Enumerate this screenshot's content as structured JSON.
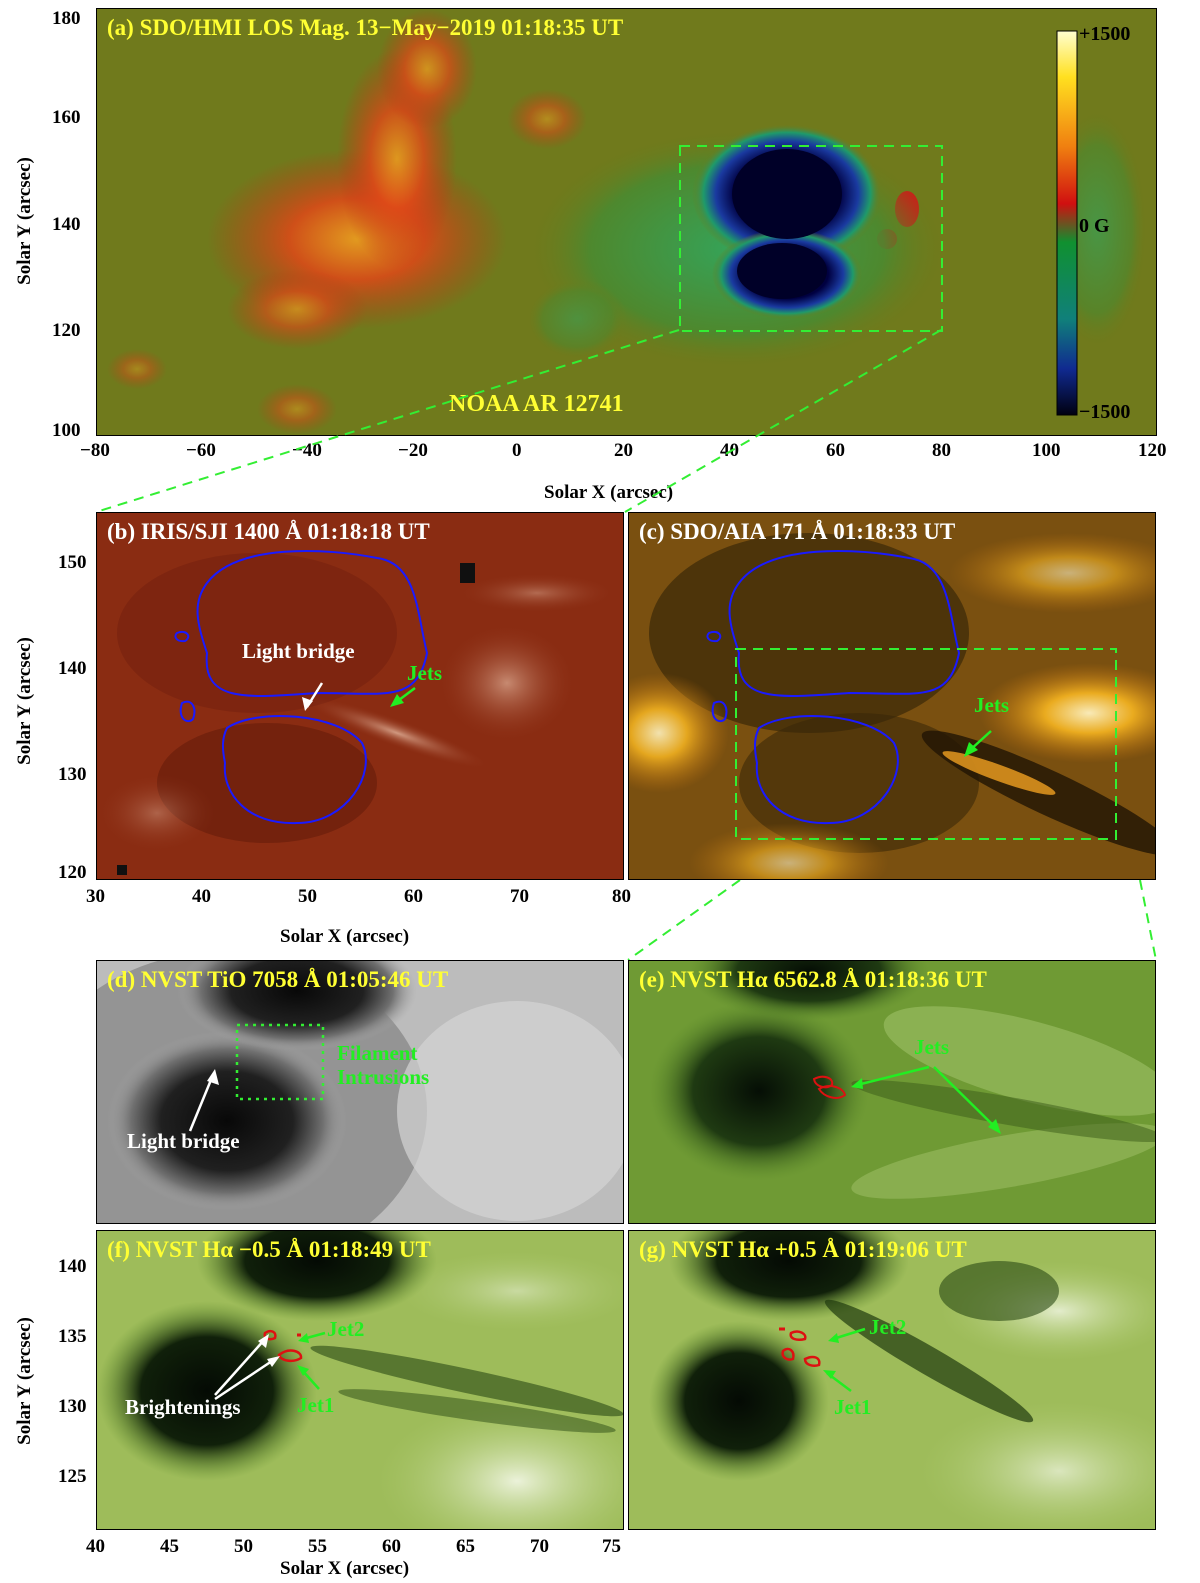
{
  "colors": {
    "title_yellow": "#ffff33",
    "title_white": "#ffffff",
    "annot_green": "#22ee22",
    "annot_white": "#ffffff",
    "contour_blue": "#1a1aff",
    "contour_red": "#dd1111",
    "box_green": "#33ee33"
  },
  "panel_a": {
    "title": "(a) SDO/HMI LOS Mag. 13−May−2019 01:18:35 UT",
    "region_label": "NOAA AR 12741",
    "colorbar": {
      "top": "+1500",
      "mid": "0 G",
      "bottom": "−1500"
    },
    "xticks": [
      "−80",
      "−60",
      "−40",
      "−20",
      "0",
      "20",
      "40",
      "60",
      "80",
      "100",
      "120"
    ],
    "yticks": [
      "180",
      "160",
      "140",
      "120",
      "100"
    ],
    "xlabel": "Solar X (arcsec)",
    "ylabel": "Solar Y (arcsec)"
  },
  "panel_b": {
    "title": "(b) IRIS/SJI 1400 Å  01:18:18 UT",
    "light_bridge": "Light bridge",
    "jets": "Jets",
    "xticks": [
      "30",
      "40",
      "50",
      "60",
      "70",
      "80"
    ],
    "yticks": [
      "150",
      "140",
      "130",
      "120"
    ],
    "xlabel": "Solar X (arcsec)",
    "ylabel": "Solar Y (arcsec)"
  },
  "panel_c": {
    "title": "(c) SDO/AIA 171 Å  01:18:33 UT",
    "jets": "Jets"
  },
  "panel_d": {
    "title": "(d) NVST TiO 7058 Å  01:05:46 UT",
    "filament_line1": "Filament",
    "filament_line2": "Intrusions",
    "light_bridge": "Light bridge"
  },
  "panel_e": {
    "title": "(e) NVST Hα 6562.8 Å  01:18:36 UT",
    "jets": "Jets"
  },
  "panel_f": {
    "title": "(f) NVST Hα −0.5 Å  01:18:49 UT",
    "jet1": "Jet1",
    "jet2": "Jet2",
    "brightenings": "Brightenings",
    "xticks": [
      "40",
      "45",
      "50",
      "55",
      "60",
      "65",
      "70",
      "75"
    ],
    "yticks": [
      "140",
      "135",
      "130",
      "125"
    ],
    "xlabel": "Solar X (arcsec)",
    "ylabel": "Solar Y (arcsec)"
  },
  "panel_g": {
    "title": "(g) NVST Hα +0.5 Å  01:19:06 UT",
    "jet1": "Jet1",
    "jet2": "Jet2"
  }
}
